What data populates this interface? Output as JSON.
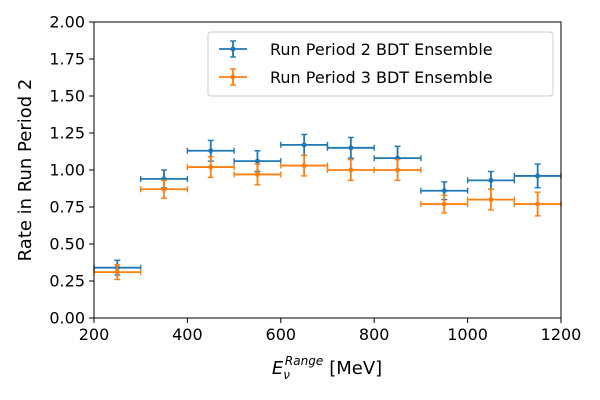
{
  "chart_data": {
    "type": "scatter",
    "title": "",
    "xlabel": {
      "base": "E",
      "sub": "ν",
      "sup": "Range",
      "unit": "[MeV]"
    },
    "ylabel": "Rate in Run Period 2",
    "xlim": [
      200,
      1200
    ],
    "ylim": [
      0,
      2.0
    ],
    "xticks": [
      "200",
      "400",
      "600",
      "800",
      "1000",
      "1200"
    ],
    "yticks": [
      "0.00",
      "0.25",
      "0.50",
      "0.75",
      "1.00",
      "1.25",
      "1.50",
      "1.75",
      "2.00"
    ],
    "grid": false,
    "legend_position": "top-right",
    "series": [
      {
        "name": "Run Period 2 BDT Ensemble",
        "color": "#1f77b4",
        "x": [
          250,
          350,
          450,
          550,
          650,
          750,
          850,
          950,
          1050,
          1150
        ],
        "x_err": [
          50,
          50,
          50,
          50,
          50,
          50,
          50,
          50,
          50,
          50
        ],
        "y": [
          0.34,
          0.94,
          1.13,
          1.06,
          1.17,
          1.15,
          1.08,
          0.86,
          0.93,
          0.96
        ],
        "y_err": [
          0.05,
          0.06,
          0.07,
          0.07,
          0.07,
          0.07,
          0.08,
          0.06,
          0.06,
          0.08
        ]
      },
      {
        "name": "Run Period 3 BDT Ensemble",
        "color": "#ff7f0e",
        "x": [
          250,
          350,
          450,
          550,
          650,
          750,
          850,
          950,
          1050,
          1150
        ],
        "x_err": [
          50,
          50,
          50,
          50,
          50,
          50,
          50,
          50,
          50,
          50
        ],
        "y": [
          0.31,
          0.87,
          1.02,
          0.97,
          1.03,
          1.0,
          1.0,
          0.77,
          0.8,
          0.77
        ],
        "y_err": [
          0.05,
          0.06,
          0.07,
          0.07,
          0.07,
          0.07,
          0.07,
          0.06,
          0.07,
          0.08
        ]
      }
    ]
  }
}
